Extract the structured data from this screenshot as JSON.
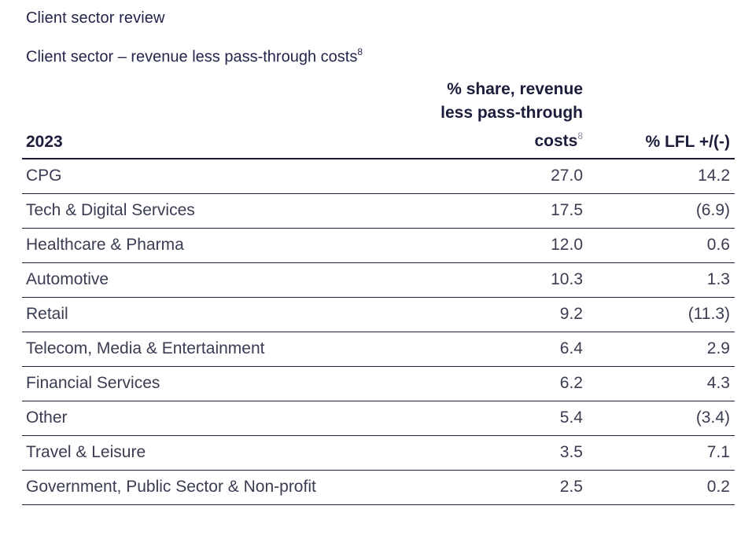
{
  "section_title": "Client sector review",
  "table_title": "Client sector – revenue less pass-through costs",
  "table_title_sup": "8",
  "header": {
    "year": "2023",
    "share_line1": "% share, revenue",
    "share_line2": "less pass-through",
    "share_line3": "costs",
    "share_sup": "8",
    "lfl": "% LFL +/(-)"
  },
  "rows": [
    {
      "label": "CPG",
      "share": "27.0",
      "lfl": "14.2"
    },
    {
      "label": "Tech & Digital Services",
      "share": "17.5",
      "lfl": "(6.9)"
    },
    {
      "label": "Healthcare & Pharma",
      "share": "12.0",
      "lfl": "0.6"
    },
    {
      "label": "Automotive",
      "share": "10.3",
      "lfl": "1.3"
    },
    {
      "label": "Retail",
      "share": "9.2",
      "lfl": "(11.3)"
    },
    {
      "label": "Telecom, Media & Entertainment",
      "share": "6.4",
      "lfl": "2.9"
    },
    {
      "label": "Financial Services",
      "share": "6.2",
      "lfl": "4.3"
    },
    {
      "label": "Other",
      "share": "5.4",
      "lfl": "(3.4)"
    },
    {
      "label": "Travel & Leisure",
      "share": "3.5",
      "lfl": "7.1"
    },
    {
      "label": "Government, Public Sector & Non-profit",
      "share": "2.5",
      "lfl": "0.2"
    }
  ]
}
